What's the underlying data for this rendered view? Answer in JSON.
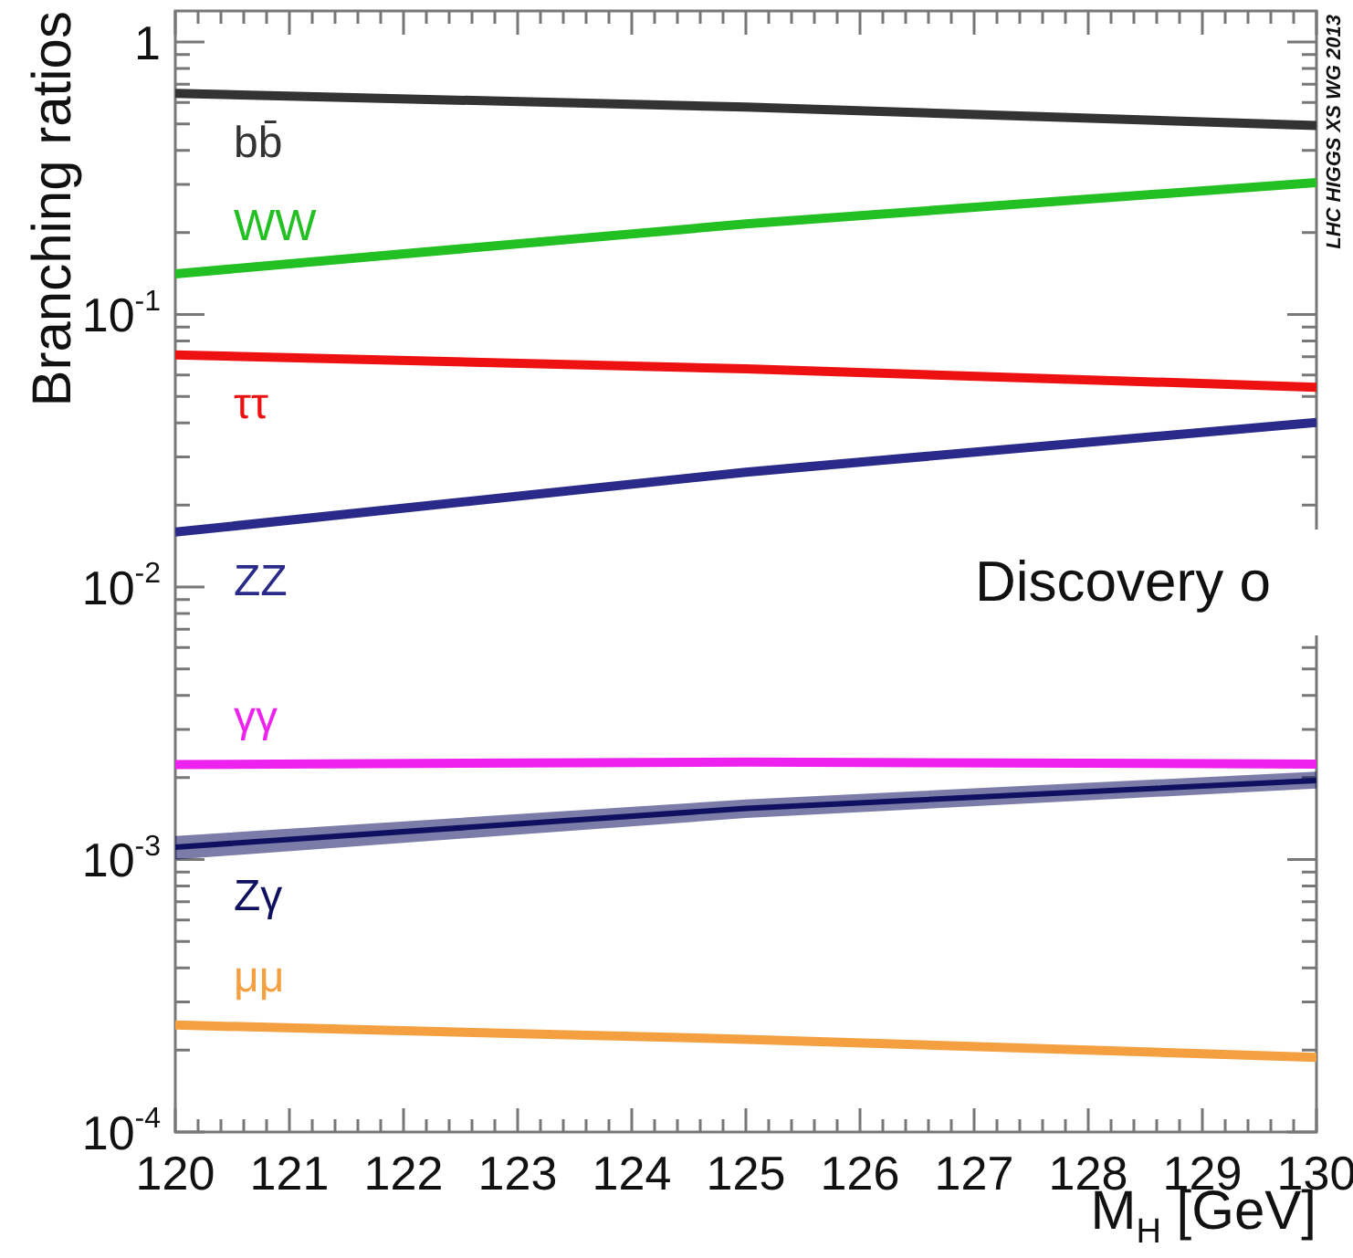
{
  "chart_data": {
    "type": "line",
    "xlabel": "M$_{H}$ [GeV]",
    "ylabel": "Branching ratios",
    "log": "y",
    "legend": false,
    "grid": false,
    "marker": "none",
    "line_style": "solid",
    "xlim": [
      120,
      130
    ],
    "ylim": [
      0.0001,
      1.3
    ],
    "xticks": [
      120,
      {
        "value": 120.2,
        "label": null
      },
      {
        "value": 120.4,
        "label": null
      },
      {
        "value": 120.6,
        "label": null
      },
      {
        "value": 120.8,
        "label": null
      },
      121,
      {
        "value": 121.2,
        "label": null
      },
      {
        "value": 121.4,
        "label": null
      },
      {
        "value": 121.6,
        "label": null
      },
      {
        "value": 121.8,
        "label": null
      },
      122,
      {
        "value": 122.2,
        "label": null
      },
      {
        "value": 122.4,
        "label": null
      },
      {
        "value": 122.6,
        "label": null
      },
      {
        "value": 122.8,
        "label": null
      },
      123,
      {
        "value": 123.2,
        "label": null
      },
      {
        "value": 123.4,
        "label": null
      },
      {
        "value": 123.6,
        "label": null
      },
      {
        "value": 123.8,
        "label": null
      },
      124,
      {
        "value": 124.2,
        "label": null
      },
      {
        "value": 124.4,
        "label": null
      },
      {
        "value": 124.6,
        "label": null
      },
      {
        "value": 124.8,
        "label": null
      },
      125,
      {
        "value": 125.2,
        "label": null
      },
      {
        "value": 125.4,
        "label": null
      },
      {
        "value": 125.6,
        "label": null
      },
      {
        "value": 125.8,
        "label": null
      },
      126,
      {
        "value": 126.2,
        "label": null
      },
      {
        "value": 126.4,
        "label": null
      },
      {
        "value": 126.6,
        "label": null
      },
      {
        "value": 126.8,
        "label": null
      },
      127,
      {
        "value": 127.2,
        "label": null
      },
      {
        "value": 127.4,
        "label": null
      },
      {
        "value": 127.6,
        "label": null
      },
      {
        "value": 127.8,
        "label": null
      },
      128,
      {
        "value": 128.2,
        "label": null
      },
      {
        "value": 128.4,
        "label": null
      },
      {
        "value": 128.6,
        "label": null
      },
      {
        "value": 128.8,
        "label": null
      },
      129,
      {
        "value": 129.2,
        "label": null
      },
      {
        "value": 129.4,
        "label": null
      },
      {
        "value": 129.6,
        "label": null
      },
      {
        "value": 129.8,
        "label": null
      },
      130
    ],
    "yticks": [
      {
        "value": 0.0001,
        "label": "10$^{-4}$"
      },
      {
        "value": 0.0002,
        "label": null
      },
      {
        "value": 0.0003,
        "label": null
      },
      {
        "value": 0.0004,
        "label": null
      },
      {
        "value": 0.0005,
        "label": null
      },
      {
        "value": 0.0006,
        "label": null
      },
      {
        "value": 0.0007,
        "label": null
      },
      {
        "value": 0.0008,
        "label": null
      },
      {
        "value": 0.0009,
        "label": null
      },
      {
        "value": 0.001,
        "label": "10$^{-3}$"
      },
      {
        "value": 0.002,
        "label": null
      },
      {
        "value": 0.003,
        "label": null
      },
      {
        "value": 0.004,
        "label": null
      },
      {
        "value": 0.005,
        "label": null
      },
      {
        "value": 0.006,
        "label": null
      },
      {
        "value": 0.007,
        "label": null
      },
      {
        "value": 0.008,
        "label": null
      },
      {
        "value": 0.009,
        "label": null
      },
      {
        "value": 0.01,
        "label": "10$^{-2}$"
      },
      {
        "value": 0.02,
        "label": null
      },
      {
        "value": 0.03,
        "label": null
      },
      {
        "value": 0.04,
        "label": null
      },
      {
        "value": 0.05,
        "label": null
      },
      {
        "value": 0.06,
        "label": null
      },
      {
        "value": 0.07,
        "label": null
      },
      {
        "value": 0.08,
        "label": null
      },
      {
        "value": 0.09,
        "label": null
      },
      {
        "value": 0.1,
        "label": "10$^{-1}$"
      },
      {
        "value": 0.2,
        "label": null
      },
      {
        "value": 0.3,
        "label": null
      },
      {
        "value": 0.4,
        "label": null
      },
      {
        "value": 0.5,
        "label": null
      },
      {
        "value": 0.6,
        "label": null
      },
      {
        "value": 0.7,
        "label": null
      },
      {
        "value": 0.8,
        "label": null
      },
      {
        "value": 0.9,
        "label": null
      },
      1
    ],
    "x": [
      120,
      125,
      130
    ],
    "series": [
      {
        "name": "bb̄",
        "color": "#333333",
        "values": [
          0.648,
          0.577,
          0.494
        ]
      },
      {
        "name": "WW",
        "color": "#22c022",
        "values": [
          0.141,
          0.215,
          0.305
        ]
      },
      {
        "name": "ττ",
        "color": "#ee1111",
        "values": [
          0.0711,
          0.0632,
          0.0541
        ]
      },
      {
        "name": "ZZ",
        "color": "#2a2a8a",
        "values": [
          0.0159,
          0.0264,
          0.0402
        ]
      },
      {
        "name": "γγ",
        "color": "#ee22ee",
        "values": [
          0.00223,
          0.00228,
          0.00224
        ]
      },
      {
        "name": "Zγ",
        "color": "#101060",
        "values": [
          0.00111,
          0.00154,
          0.00195
        ],
        "lower": [
          0.001,
          0.00142,
          0.00182
        ],
        "upper": [
          0.00122,
          0.00166,
          0.0021
        ]
      },
      {
        "name": "μμ",
        "color": "#f5a040",
        "values": [
          0.000247,
          0.000219,
          0.000188
        ]
      }
    ],
    "annotations": [
      "LHC HIGGS XS WG 2013",
      "Discovery o"
    ]
  }
}
